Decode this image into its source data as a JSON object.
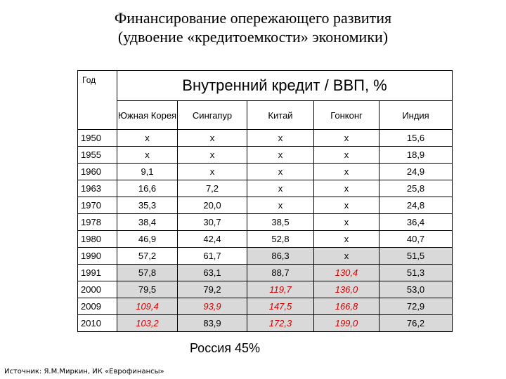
{
  "title": {
    "line1": "Финансирование опережающего развития",
    "line2": "(удвоение «кредитоемкости» экономики)"
  },
  "table": {
    "year_header": "Год",
    "main_header": "Внутренний кредит / ВВП, %",
    "columns": [
      "Южная Корея",
      "Сингапур",
      "Китай",
      "Гонконг",
      "Индия"
    ],
    "rows": [
      {
        "year": "1950",
        "cells": [
          "x",
          "x",
          "x",
          "x",
          "15,6"
        ]
      },
      {
        "year": "1955",
        "cells": [
          "x",
          "x",
          "x",
          "x",
          "18,9"
        ]
      },
      {
        "year": "1960",
        "cells": [
          "9,1",
          "x",
          "x",
          "x",
          "24,9"
        ]
      },
      {
        "year": "1963",
        "cells": [
          "16,6",
          "7,2",
          "x",
          "x",
          "25,8"
        ]
      },
      {
        "year": "1970",
        "cells": [
          "35,3",
          "20,0",
          "x",
          "x",
          "24,8"
        ]
      },
      {
        "year": "1978",
        "cells": [
          "38,4",
          "30,7",
          "38,5",
          "x",
          "36,4"
        ]
      },
      {
        "year": "1980",
        "cells": [
          "46,9",
          "42,4",
          "52,8",
          "x",
          "40,7"
        ]
      },
      {
        "year": "1990",
        "cells": [
          "57,2",
          "61,7",
          "86,3",
          "x",
          "51,5"
        ]
      },
      {
        "year": "1991",
        "cells": [
          "57,8",
          "63,1",
          "88,7",
          "130,4",
          "51,3"
        ]
      },
      {
        "year": "2000",
        "cells": [
          "79,5",
          "79,2",
          "119,7",
          "136,0",
          "53,0"
        ]
      },
      {
        "year": "2009",
        "cells": [
          "109,4",
          "93,9",
          "147,5",
          "166,8",
          "72,9"
        ]
      },
      {
        "year": "2010",
        "cells": [
          "103,2",
          "83,9",
          "172,3",
          "199,0",
          "76,2"
        ]
      }
    ],
    "highlight_color": "#d00000",
    "shade_color": "#d9d9d9"
  },
  "russia": "Россия 45%",
  "source": "Источник: Я.М.Миркин, ИК «Еврофинансы»"
}
